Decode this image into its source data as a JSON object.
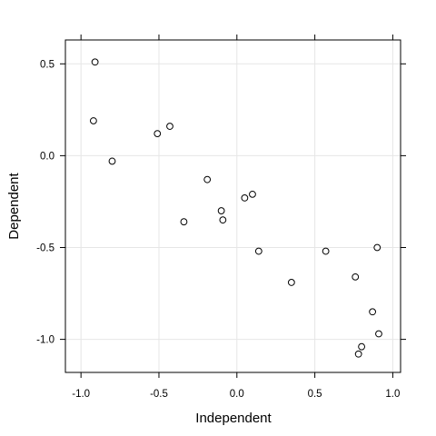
{
  "chart_data": {
    "type": "scatter",
    "title": "",
    "xlabel": "Independent",
    "ylabel": "Dependent",
    "xlim": [
      -1.1,
      1.05
    ],
    "ylim": [
      -1.18,
      0.63
    ],
    "grid": true,
    "x_ticks": [
      -1.0,
      -0.5,
      0.0,
      0.5,
      1.0
    ],
    "x_tick_labels": [
      "-1.0",
      "-0.5",
      "0.0",
      "0.5",
      "1.0"
    ],
    "y_ticks": [
      0.5,
      0.0,
      -0.5,
      -1.0
    ],
    "y_tick_labels": [
      "0.5",
      "0.0",
      "-0.5",
      "-1.0"
    ],
    "colors": {
      "point_stroke": "#000000",
      "point_fill": "#ffffff",
      "grid": "#e6e6e6"
    },
    "points": [
      {
        "x": -0.91,
        "y": 0.51
      },
      {
        "x": -0.92,
        "y": 0.19
      },
      {
        "x": -0.8,
        "y": -0.03
      },
      {
        "x": -0.51,
        "y": 0.12
      },
      {
        "x": -0.43,
        "y": 0.16
      },
      {
        "x": -0.34,
        "y": -0.36
      },
      {
        "x": -0.19,
        "y": -0.13
      },
      {
        "x": -0.1,
        "y": -0.3
      },
      {
        "x": -0.09,
        "y": -0.35
      },
      {
        "x": 0.05,
        "y": -0.23
      },
      {
        "x": 0.1,
        "y": -0.21
      },
      {
        "x": 0.14,
        "y": -0.52
      },
      {
        "x": 0.35,
        "y": -0.69
      },
      {
        "x": 0.57,
        "y": -0.52
      },
      {
        "x": 0.76,
        "y": -0.66
      },
      {
        "x": 0.78,
        "y": -1.08
      },
      {
        "x": 0.8,
        "y": -1.04
      },
      {
        "x": 0.87,
        "y": -0.85
      },
      {
        "x": 0.9,
        "y": -0.5
      },
      {
        "x": 0.91,
        "y": -0.97
      }
    ]
  }
}
